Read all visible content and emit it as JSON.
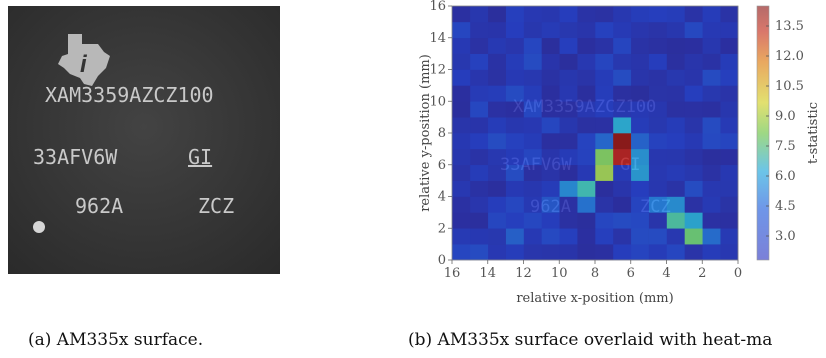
{
  "chip": {
    "line1": "XAM3359AZCZ100",
    "line2": "33AFV6W",
    "line2_suffix": "GI",
    "line3": "962A",
    "line3_suffix": "ZCZ"
  },
  "captions": {
    "a": "(a) AM335x surface.",
    "b": "(b) AM335x surface overlaid with heat-ma"
  },
  "chart_data": {
    "type": "heatmap",
    "xlabel": "relative x-position (mm)",
    "ylabel": "relative y-position (mm)",
    "colorbar_label": "t-statistic",
    "x_ticks": [
      16,
      14,
      12,
      10,
      8,
      6,
      4,
      2,
      0
    ],
    "y_ticks": [
      0,
      2,
      4,
      6,
      8,
      10,
      12,
      14,
      16
    ],
    "colorbar_ticks": [
      3.0,
      4.5,
      6.0,
      7.5,
      9.0,
      10.5,
      12.0,
      13.5
    ],
    "xlim": [
      16,
      0
    ],
    "ylim": [
      0,
      16
    ],
    "clim": [
      1.8,
      14.5
    ],
    "grid_size": 16,
    "cell_mm": 1,
    "hot_cells": [
      {
        "x": 6.5,
        "y": 7.5,
        "t": 14.2
      },
      {
        "x": 6.5,
        "y": 6.5,
        "t": 13.6
      },
      {
        "x": 6.5,
        "y": 8.5,
        "t": 6.8
      },
      {
        "x": 7.5,
        "y": 5.5,
        "t": 9.5
      },
      {
        "x": 7.5,
        "y": 6.5,
        "t": 9.0
      },
      {
        "x": 5.5,
        "y": 5.5,
        "t": 6.4
      },
      {
        "x": 5.5,
        "y": 6.5,
        "t": 6.2
      },
      {
        "x": 8.5,
        "y": 4.5,
        "t": 7.6
      },
      {
        "x": 9.5,
        "y": 4.5,
        "t": 6.0
      },
      {
        "x": 2.5,
        "y": 1.5,
        "t": 8.6
      },
      {
        "x": 3.5,
        "y": 2.5,
        "t": 7.9
      },
      {
        "x": 2.5,
        "y": 2.5,
        "t": 6.7
      },
      {
        "x": 3.5,
        "y": 3.5,
        "t": 6.1
      },
      {
        "x": 1.5,
        "y": 1.5,
        "t": 5.2
      },
      {
        "x": 4.5,
        "y": 3.5,
        "t": 5.6
      },
      {
        "x": 8.5,
        "y": 3.5,
        "t": 5.4
      },
      {
        "x": 7.5,
        "y": 7.5,
        "t": 5.0
      },
      {
        "x": 12.5,
        "y": 1.5,
        "t": 4.8
      },
      {
        "x": 10.5,
        "y": 3.5,
        "t": 4.5
      },
      {
        "x": 5.5,
        "y": 7.5,
        "t": 4.9
      }
    ],
    "base_range": [
      2.0,
      4.2
    ]
  }
}
